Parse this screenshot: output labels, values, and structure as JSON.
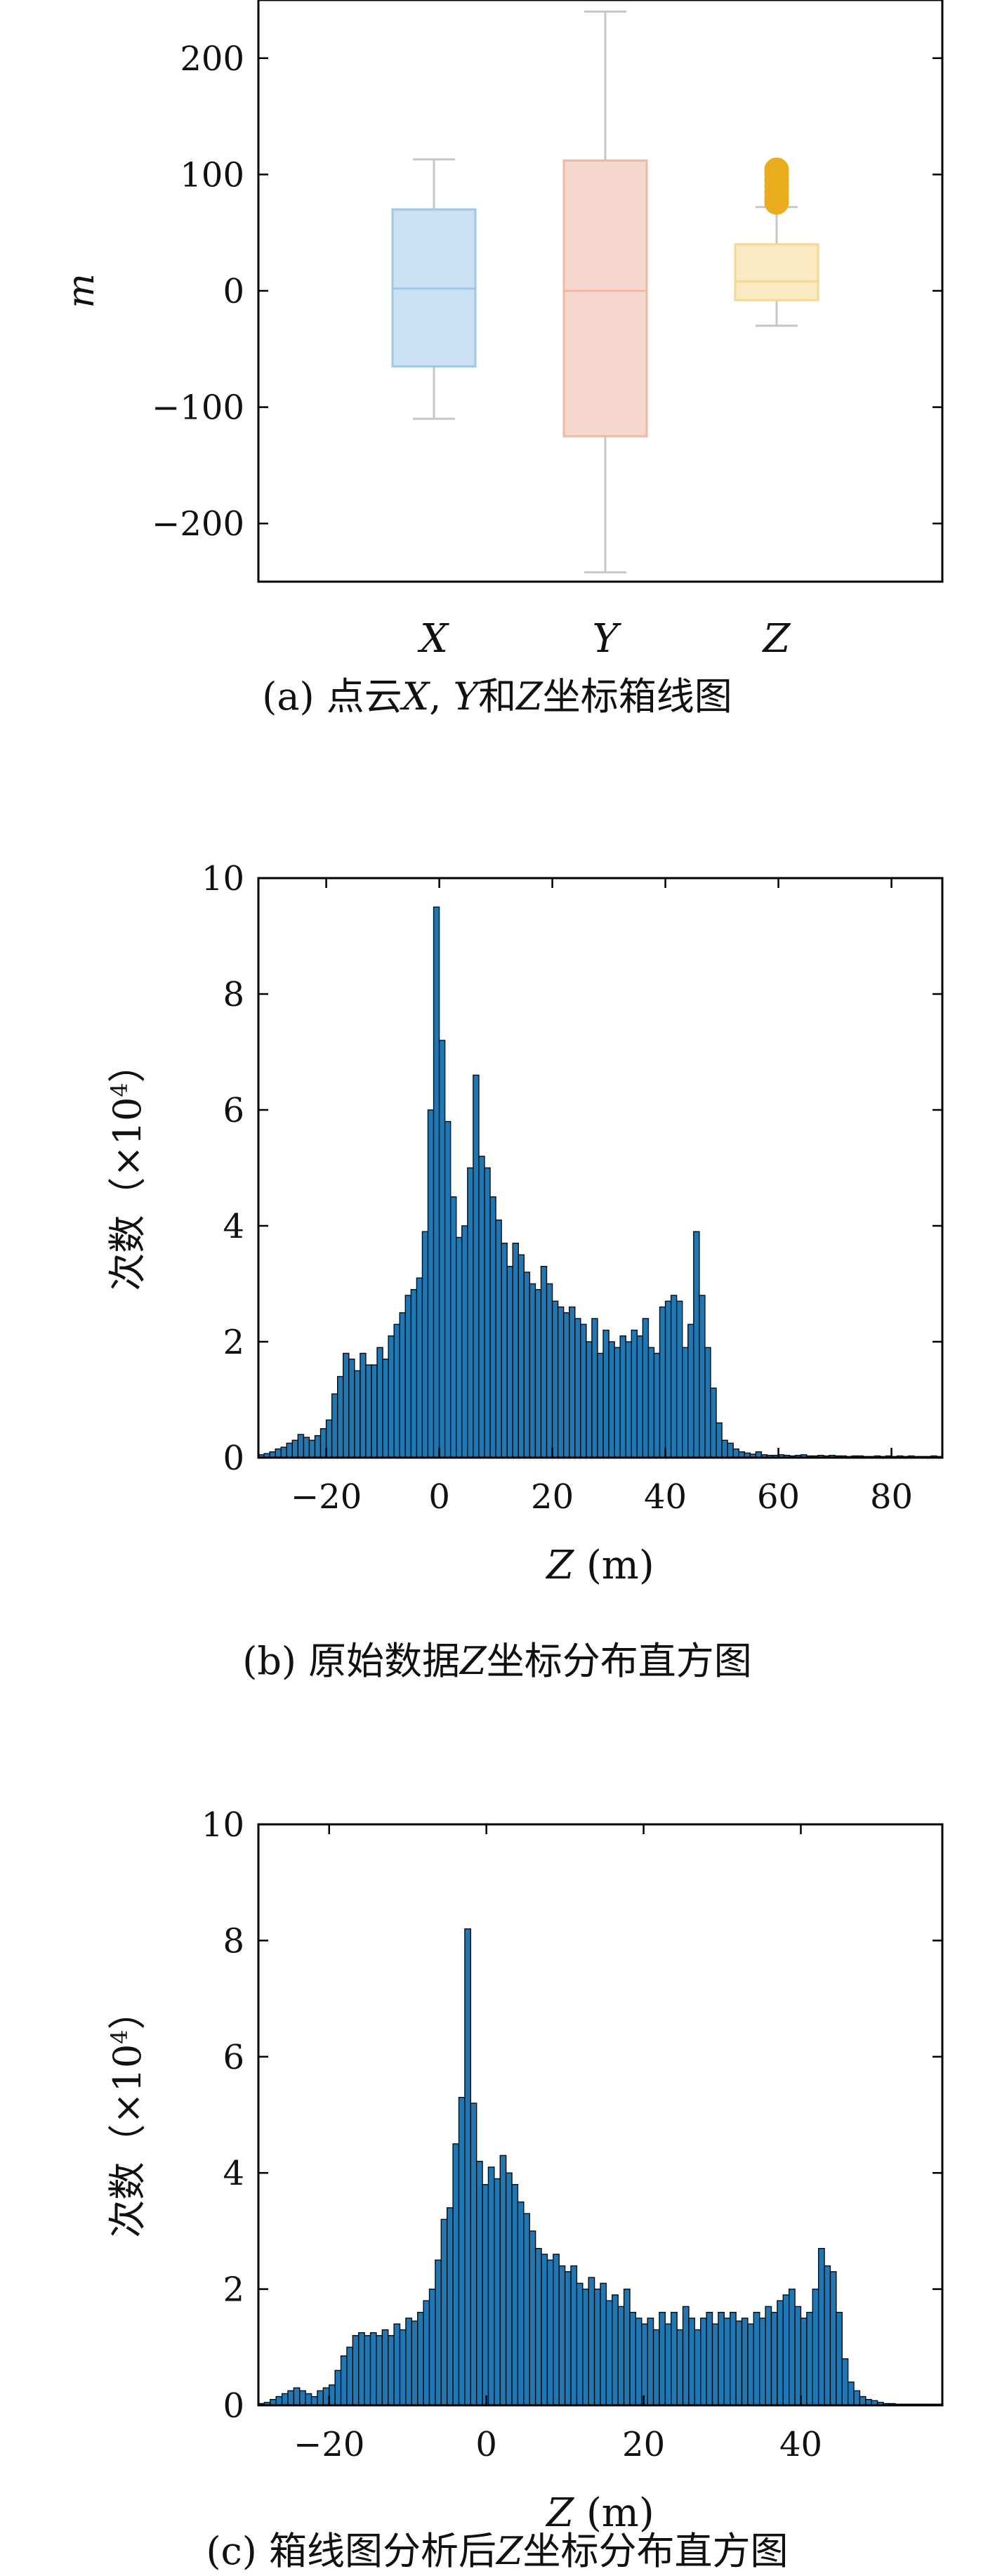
{
  "chart_data": [
    {
      "type": "box",
      "ylabel": "m",
      "categories": [
        "X",
        "Y",
        "Z"
      ],
      "ylim": [
        -250,
        250
      ],
      "yticks": [
        -200,
        -100,
        0,
        100,
        200
      ],
      "colors": [
        "#c9e1f2",
        "#f6d7cd",
        "#fbe9c4"
      ],
      "edge_colors": [
        "#9ec8e6",
        "#f0b8a4",
        "#f3d794"
      ],
      "outlier_color": "#e9ad1e",
      "grid": false,
      "boxes": [
        {
          "name": "X",
          "whisker_low": -110,
          "q1": -65,
          "median": 2,
          "q3": 70,
          "whisker_high": 113,
          "outliers": []
        },
        {
          "name": "Y",
          "whisker_low": -242,
          "q1": -125,
          "median": 0,
          "q3": 112,
          "whisker_high": 240,
          "outliers": []
        },
        {
          "name": "Z",
          "whisker_low": -30,
          "q1": -8,
          "median": 8,
          "q3": 40,
          "whisker_high": 72,
          "outliers": [
            76,
            80,
            85,
            90,
            95,
            100,
            104
          ]
        }
      ],
      "caption": {
        "prefix": "(a) 点云",
        "v1": "X",
        "sep": ", ",
        "v2": "Y",
        "mid": "和",
        "v3": "Z",
        "suffix": "坐标箱线图"
      }
    },
    {
      "type": "bar",
      "xlabel": {
        "var": "Z",
        "unit": "(m)"
      },
      "ylabel": {
        "text": "次数（×10",
        "exp": "4",
        "close": "）"
      },
      "xlim": [
        -32,
        89
      ],
      "ylim": [
        0,
        10
      ],
      "xticks": [
        -20,
        0,
        20,
        40,
        60,
        80
      ],
      "yticks": [
        0,
        2,
        4,
        6,
        8,
        10
      ],
      "bin_start": -32,
      "bin_width": 1,
      "bar_color": "#1f77b4",
      "values": [
        0.05,
        0.07,
        0.1,
        0.15,
        0.18,
        0.25,
        0.3,
        0.4,
        0.35,
        0.3,
        0.38,
        0.5,
        0.65,
        1.1,
        1.4,
        1.8,
        1.7,
        1.5,
        1.8,
        1.6,
        1.6,
        1.9,
        1.7,
        2.1,
        2.3,
        2.5,
        2.8,
        2.9,
        3.1,
        3.9,
        6.0,
        9.5,
        7.2,
        5.8,
        4.5,
        3.8,
        4.0,
        5.0,
        6.6,
        5.2,
        5.0,
        4.5,
        4.1,
        3.7,
        3.3,
        3.7,
        3.5,
        3.2,
        3.0,
        2.9,
        3.3,
        3.0,
        2.7,
        2.6,
        2.5,
        2.6,
        2.4,
        2.3,
        2.0,
        2.4,
        1.8,
        2.2,
        2.0,
        1.9,
        2.1,
        2.0,
        2.2,
        2.1,
        2.4,
        1.9,
        1.8,
        2.6,
        2.7,
        2.8,
        2.7,
        1.9,
        2.3,
        3.9,
        2.8,
        1.9,
        1.2,
        0.6,
        0.3,
        0.25,
        0.15,
        0.1,
        0.08,
        0.06,
        0.1,
        0.05,
        0.04,
        0.04,
        0.05,
        0.04,
        0.03,
        0.04,
        0.05,
        0.03,
        0.03,
        0.04,
        0.03,
        0.04,
        0.03,
        0.03,
        0.02,
        0.03,
        0.03,
        0.02,
        0.02,
        0.03,
        0.02,
        0.03,
        0.02,
        0.03,
        0.02,
        0.03,
        0.02,
        0.02,
        0.02,
        0.03,
        0.02
      ],
      "caption": {
        "prefix": "(b) 原始数据",
        "var": "Z",
        "suffix": "坐标分布直方图"
      }
    },
    {
      "type": "bar",
      "xlabel": {
        "var": "Z",
        "unit": "(m)"
      },
      "ylabel": {
        "text": "次数（×10",
        "exp": "4",
        "close": "）"
      },
      "xlim": [
        -29,
        58
      ],
      "ylim": [
        0,
        10
      ],
      "xticks": [
        -20,
        0,
        20,
        40
      ],
      "yticks": [
        0,
        2,
        4,
        6,
        8,
        10
      ],
      "bin_start": -29,
      "bin_width": 0.75,
      "bar_color": "#1f77b4",
      "values": [
        0.03,
        0.05,
        0.1,
        0.15,
        0.2,
        0.25,
        0.3,
        0.25,
        0.2,
        0.15,
        0.25,
        0.3,
        0.35,
        0.6,
        0.85,
        1.0,
        1.2,
        1.25,
        1.2,
        1.25,
        1.2,
        1.3,
        1.2,
        1.4,
        1.3,
        1.5,
        1.45,
        1.6,
        1.8,
        2.0,
        2.5,
        3.2,
        3.4,
        4.5,
        5.3,
        8.2,
        5.2,
        4.2,
        3.8,
        4.1,
        3.9,
        4.3,
        4.0,
        3.8,
        3.5,
        3.3,
        3.0,
        2.7,
        2.6,
        2.5,
        2.6,
        2.4,
        2.3,
        2.4,
        2.1,
        2.0,
        2.2,
        2.0,
        2.1,
        1.8,
        1.9,
        1.7,
        2.0,
        1.6,
        1.5,
        1.4,
        1.5,
        1.3,
        1.6,
        1.4,
        1.6,
        1.3,
        1.7,
        1.5,
        1.3,
        1.5,
        1.6,
        1.4,
        1.6,
        1.5,
        1.6,
        1.45,
        1.5,
        1.4,
        1.6,
        1.5,
        1.7,
        1.6,
        1.8,
        1.9,
        2.0,
        1.7,
        1.5,
        1.6,
        2.0,
        2.7,
        2.4,
        2.3,
        1.6,
        0.8,
        0.4,
        0.25,
        0.15,
        0.1,
        0.08,
        0.05,
        0.03,
        0.03,
        0.02,
        0.02,
        0.02,
        0.02,
        0.02,
        0.02,
        0.02,
        0.02
      ],
      "caption": {
        "prefix": "(c) 箱线图分析后",
        "var": "Z",
        "suffix": "坐标分布直方图"
      }
    }
  ]
}
